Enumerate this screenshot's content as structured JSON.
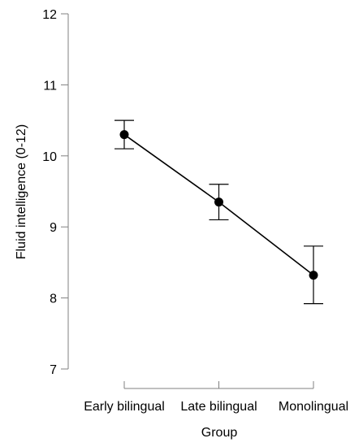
{
  "chart_data": {
    "type": "line",
    "title": "",
    "xlabel": "Group",
    "ylabel": "Fluid intelligence (0-12)",
    "categories": [
      "Early bilingual",
      "Late bilingual",
      "Monolingual"
    ],
    "series": [
      {
        "values": [
          10.3,
          9.35,
          8.32
        ],
        "error_low": [
          10.1,
          9.1,
          7.92
        ],
        "error_high": [
          10.5,
          9.6,
          8.73
        ]
      }
    ],
    "ylim": [
      7,
      12
    ],
    "yticks": [
      7,
      8,
      9,
      10,
      11,
      12
    ],
    "grid": false,
    "legend": "none",
    "colors": {
      "line": "#000000",
      "marker": "#000000",
      "axis": "#808080"
    }
  }
}
